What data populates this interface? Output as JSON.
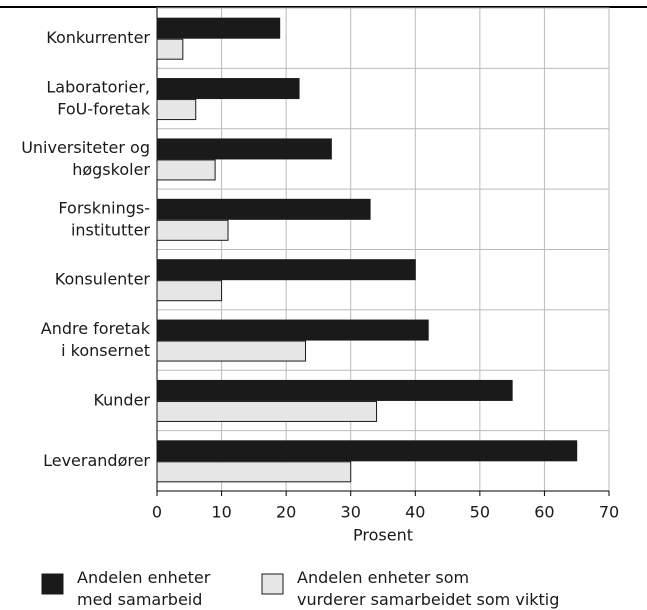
{
  "chart_data": {
    "type": "barh",
    "categories": [
      [
        "Konkurrenter"
      ],
      [
        "Laboratorier,",
        "FoU-foretak"
      ],
      [
        "Universiteter og",
        "høgskoler"
      ],
      [
        "Forsknings-",
        "institutter"
      ],
      [
        "Konsulenter"
      ],
      [
        "Andre foretak",
        "i konsernet"
      ],
      [
        "Kunder"
      ],
      [
        "Leverandører"
      ]
    ],
    "series": [
      {
        "name": [
          "Andelen enheter",
          "med samarbeid"
        ],
        "color": "#1a1a1a",
        "values": [
          19,
          22,
          27,
          33,
          40,
          42,
          55,
          65
        ]
      },
      {
        "name": [
          "Andelen enheter som",
          "vurderer samarbeidet som viktig"
        ],
        "color": "#e6e6e6",
        "values": [
          4,
          6,
          9,
          11,
          10,
          23,
          34,
          30
        ]
      }
    ],
    "xlabel": "Prosent",
    "xlim": [
      0,
      70
    ],
    "xticks": [
      0,
      10,
      20,
      30,
      40,
      50,
      60,
      70
    ],
    "grid": true,
    "legend": "bottom"
  }
}
